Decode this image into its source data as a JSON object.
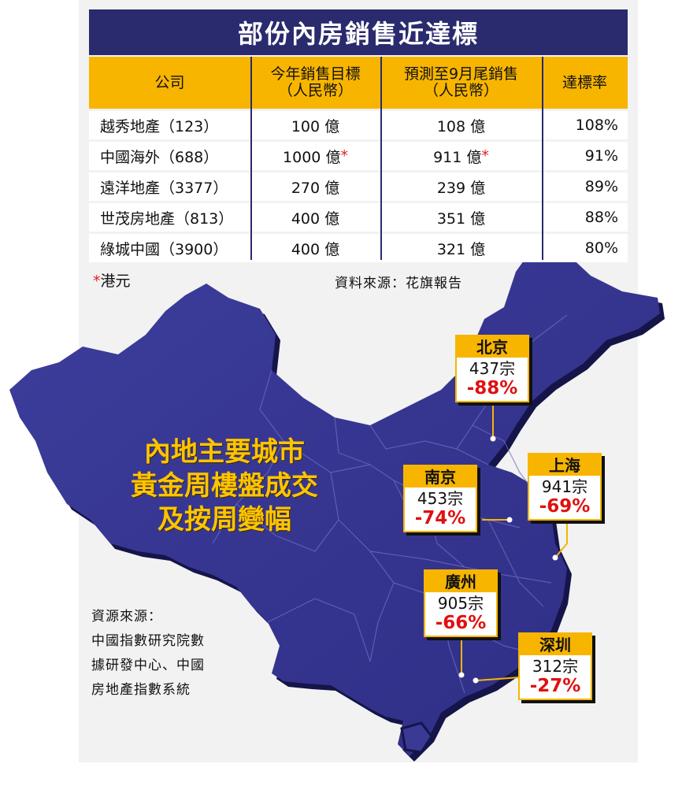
{
  "table": {
    "title": "部份內房銷售近達標",
    "headers": {
      "company": "公司",
      "target_l1": "今年銷售目標",
      "target_l2": "（人民幣）",
      "forecast_l1": "預測至9月尾銷售",
      "forecast_l2": "（人民幣）",
      "rate": "達標率"
    },
    "rows": [
      {
        "company": "越秀地產（123）",
        "target": "100 億",
        "target_star": "",
        "forecast": "108 億",
        "forecast_star": "",
        "rate": "108%"
      },
      {
        "company": "中國海外（688）",
        "target": "1000 億",
        "target_star": "*",
        "forecast": "911 億",
        "forecast_star": "*",
        "rate": "91%"
      },
      {
        "company": "遠洋地產（3377）",
        "target": "270 億",
        "target_star": "",
        "forecast": "239 億",
        "forecast_star": "",
        "rate": "89%"
      },
      {
        "company": "世茂房地產（813）",
        "target": "400 億",
        "target_star": "",
        "forecast": "351 億",
        "forecast_star": "",
        "rate": "88%"
      },
      {
        "company": "綠城中國（3900）",
        "target": "400 億",
        "target_star": "",
        "forecast": "321 億",
        "forecast_star": "",
        "rate": "80%"
      }
    ],
    "note_star": "*",
    "note_text": "港元",
    "source": "資料來源：花旗報告"
  },
  "map": {
    "title_l1": "內地主要城市",
    "title_l2": "黃金周樓盤成交",
    "title_l3": "及按周變幅",
    "source_l1": "資源來源：",
    "source_l2": "中國指數研究院數",
    "source_l3": "據研發中心、中國",
    "source_l4": "房地產指數系統",
    "cities": [
      {
        "name": "北京",
        "sales": "437宗",
        "change": "-88%"
      },
      {
        "name": "南京",
        "sales": "453宗",
        "change": "-74%"
      },
      {
        "name": "上海",
        "sales": "941宗",
        "change": "-69%"
      },
      {
        "name": "廣州",
        "sales": "905宗",
        "change": "-66%"
      },
      {
        "name": "深圳",
        "sales": "312宗",
        "change": "-27%"
      }
    ]
  },
  "colors": {
    "header_navy": "#2a2a6e",
    "header_gold": "#f7b500",
    "map_fill": "#3a3a96",
    "map_title": "#ffc400",
    "negative_red": "#e01010"
  }
}
